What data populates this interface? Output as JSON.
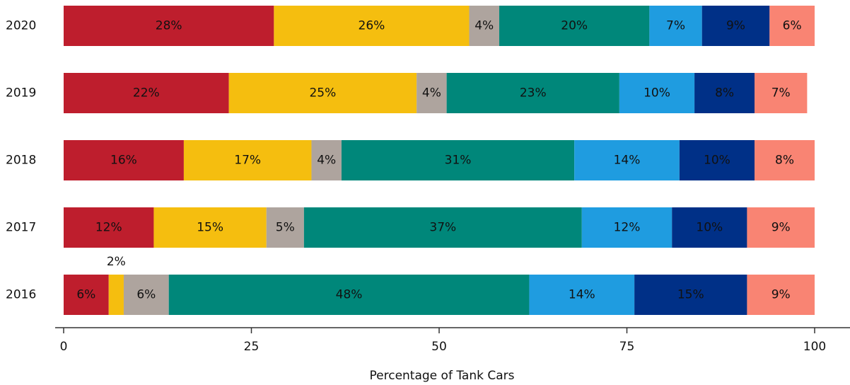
{
  "chart_data": {
    "type": "stacked-bar-horizontal",
    "x_label": "Percentage of Tank Cars",
    "categories": [
      "2020",
      "2019",
      "2018",
      "2017",
      "2016"
    ],
    "series": [
      {
        "color": "#be1e2d",
        "label_color": "#ffffff",
        "values": [
          28,
          22,
          16,
          12,
          6
        ],
        "value_labels": [
          "28%",
          "22%",
          "16%",
          "12%",
          "6%"
        ]
      },
      {
        "color": "#f5be0f",
        "label_color": "#111111",
        "values": [
          26,
          25,
          17,
          15,
          2
        ],
        "value_labels": [
          "26%",
          "25%",
          "17%",
          "15%",
          "2%"
        ]
      },
      {
        "color": "#aea49e",
        "label_color": "#ffffff",
        "values": [
          4,
          4,
          4,
          5,
          6
        ],
        "value_labels": [
          "4%",
          "4%",
          "4%",
          "5%",
          "6%"
        ]
      },
      {
        "color": "#00877a",
        "label_color": "#ffffff",
        "values": [
          20,
          23,
          31,
          37,
          48
        ],
        "value_labels": [
          "20%",
          "23%",
          "31%",
          "37%",
          "48%"
        ]
      },
      {
        "color": "#1f9ce0",
        "label_color": "#ffffff",
        "values": [
          7,
          10,
          14,
          12,
          14
        ],
        "value_labels": [
          "7%",
          "10%",
          "14%",
          "12%",
          "14%"
        ]
      },
      {
        "color": "#003087",
        "label_color": "#ffffff",
        "values": [
          9,
          8,
          10,
          10,
          15
        ],
        "value_labels": [
          "9%",
          "8%",
          "10%",
          "10%",
          "15%"
        ]
      },
      {
        "color": "#f98473",
        "label_color": "#111111",
        "values": [
          6,
          7,
          8,
          9,
          9
        ],
        "value_labels": [
          "6%",
          "7%",
          "8%",
          "9%",
          "9%"
        ]
      }
    ],
    "xlim": [
      0,
      100
    ],
    "xticks": [
      0,
      25,
      50,
      75,
      100
    ]
  }
}
